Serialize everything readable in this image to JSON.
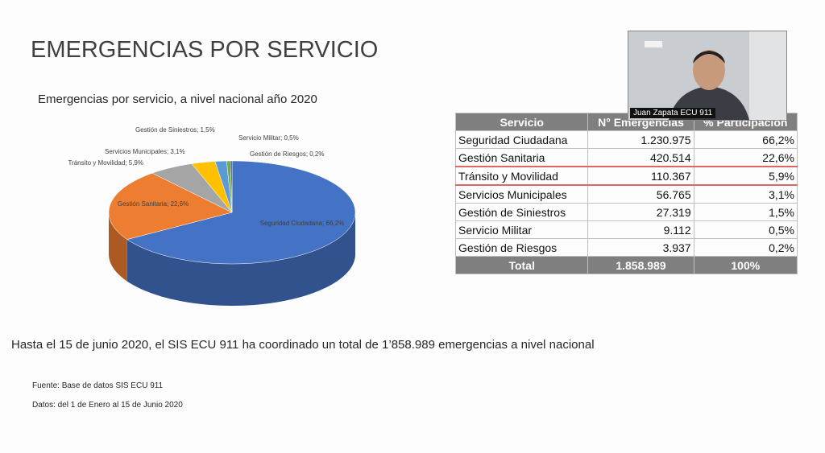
{
  "slide": {
    "title": "EMERGENCIAS POR SERVICIO",
    "statement": "Hasta el 15 de junio 2020,  el SIS ECU 911 ha coordinado un total de 1’858.989 emergencias a nivel nacional",
    "source": "Fuente: Base de datos SIS ECU 911",
    "dates": "Datos: del 1 de Enero al 15 de Junio 2020"
  },
  "chart_data": {
    "type": "pie",
    "title": "Emergencias por servicio, a nivel nacional año 2020",
    "categories": [
      "Seguridad Ciudadana",
      "Gestión Sanitaria",
      "Tránsito y Movilidad",
      "Servicios Municipales",
      "Gestión de Siniestros",
      "Servicio Militar",
      "Gestión de Riesgos"
    ],
    "values": [
      66.2,
      22.6,
      5.9,
      3.1,
      1.5,
      0.5,
      0.2
    ],
    "value_labels": [
      "Seguridad Ciudadana; 66,2%",
      "Gestión Sanitaria; 22,6%",
      "Tránsito y Movilidad; 5,9%",
      "Servicios Municipales; 3,1%",
      "Gestión de Siniestros; 1,5%",
      "Servicio Militar; 0,5%",
      "Gestión de Riesgos; 0,2%"
    ],
    "colors": [
      "#4472c4",
      "#ed7d31",
      "#a5a5a5",
      "#ffc000",
      "#5b9bd5",
      "#70ad47",
      "#264478"
    ]
  },
  "table": {
    "header": [
      "Servicio",
      "N° Emergencias",
      "% Participación"
    ],
    "rows": [
      [
        "Seguridad Ciudadana",
        "1.230.975",
        "66,2%"
      ],
      [
        "Gestión Sanitaria",
        "420.514",
        "22,6%"
      ],
      [
        "Tránsito y Movilidad",
        "110.367",
        "5,9%"
      ],
      [
        "Servicios Municipales",
        "56.765",
        "3,1%"
      ],
      [
        "Gestión de Siniestros",
        "27.319",
        "1,5%"
      ],
      [
        "Servicio Militar",
        "9.112",
        "0,5%"
      ],
      [
        "Gestión de Riesgos",
        "3.937",
        "0,2%"
      ]
    ],
    "total": [
      "Total",
      "1.858.989",
      "100%"
    ]
  },
  "video": {
    "participant": "Juan Zapata ECU 911"
  }
}
